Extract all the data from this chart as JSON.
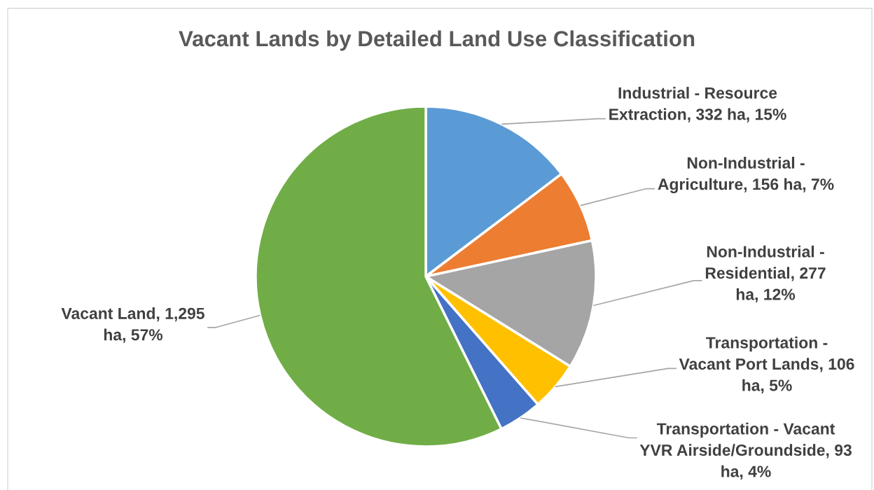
{
  "chart_data": {
    "type": "pie",
    "title": "Vacant Lands by Detailed Land Use Classification",
    "categories": [
      "Industrial - Resource Extraction",
      "Non-Industrial - Agriculture",
      "Non-Industrial - Residential",
      "Transportation - Vacant Port Lands",
      "Transportation - Vacant YVR Airside/Groundside",
      "Vacant Land"
    ],
    "values": [
      332,
      156,
      277,
      106,
      93,
      1295
    ],
    "colors": [
      "#5b9bd5",
      "#ed7d31",
      "#a5a5a5",
      "#ffc000",
      "#4472c4",
      "#70ad47"
    ],
    "value_labels": [
      "332 ha, 15%",
      "156 ha, 7%",
      "277 ha, 12%",
      "106 ha, 5%",
      "93 ha, 4%",
      "1,295 ha, 57%"
    ]
  }
}
